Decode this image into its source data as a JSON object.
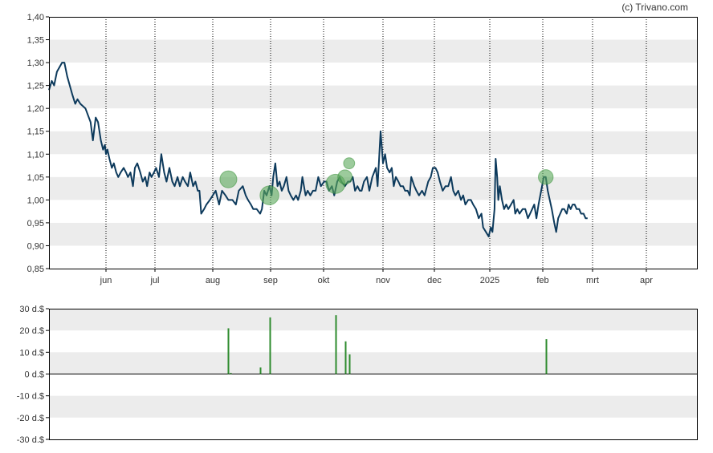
{
  "watermark": "(c) Trivano.com",
  "colors": {
    "price_line": "#0d3a5c",
    "dividend": "#2e8b2e",
    "bubble": "#5aa85a",
    "band": "#ececec",
    "axis": "#000000"
  },
  "chart_data": [
    {
      "type": "line",
      "title": "",
      "xlabel": "",
      "ylabel": "",
      "ylim": [
        0.85,
        1.4
      ],
      "grid": true,
      "y_ticks": [
        "1,40",
        "1,35",
        "1,30",
        "1,25",
        "1,20",
        "1,15",
        "1,10",
        "1,05",
        "1,00",
        "0,95",
        "0,90",
        "0,85"
      ],
      "x_ticks": [
        {
          "label": "jun",
          "month": 1
        },
        {
          "label": "jul",
          "month": 2
        },
        {
          "label": "aug",
          "month": 3
        },
        {
          "label": "sep",
          "month": 4
        },
        {
          "label": "okt",
          "month": 5
        },
        {
          "label": "nov",
          "month": 6
        },
        {
          "label": "dec",
          "month": 7
        },
        {
          "label": "2025",
          "month": 8
        },
        {
          "label": "feb",
          "month": 9
        },
        {
          "label": "mrt",
          "month": 10
        },
        {
          "label": "apr",
          "month": 11
        }
      ],
      "series": [
        {
          "points": [
            [
              0.0,
              1.24
            ],
            [
              0.05,
              1.26
            ],
            [
              0.09,
              1.25
            ],
            [
              0.14,
              1.28
            ],
            [
              0.23,
              1.3
            ],
            [
              0.27,
              1.3
            ],
            [
              0.32,
              1.27
            ],
            [
              0.41,
              1.23
            ],
            [
              0.46,
              1.21
            ],
            [
              0.5,
              1.22
            ],
            [
              0.55,
              1.21
            ],
            [
              0.64,
              1.2
            ],
            [
              0.73,
              1.17
            ],
            [
              0.77,
              1.13
            ],
            [
              0.82,
              1.18
            ],
            [
              0.86,
              1.17
            ],
            [
              0.91,
              1.13
            ],
            [
              0.95,
              1.11
            ],
            [
              0.98,
              1.12
            ],
            [
              1.0,
              1.1
            ],
            [
              1.03,
              1.11
            ],
            [
              1.07,
              1.09
            ],
            [
              1.12,
              1.07
            ],
            [
              1.16,
              1.08
            ],
            [
              1.21,
              1.06
            ],
            [
              1.25,
              1.05
            ],
            [
              1.3,
              1.06
            ],
            [
              1.36,
              1.07
            ],
            [
              1.41,
              1.06
            ],
            [
              1.45,
              1.05
            ],
            [
              1.5,
              1.06
            ],
            [
              1.55,
              1.03
            ],
            [
              1.59,
              1.07
            ],
            [
              1.64,
              1.08
            ],
            [
              1.7,
              1.06
            ],
            [
              1.75,
              1.04
            ],
            [
              1.8,
              1.05
            ],
            [
              1.84,
              1.03
            ],
            [
              1.89,
              1.06
            ],
            [
              1.93,
              1.05
            ],
            [
              1.98,
              1.06
            ],
            [
              2.02,
              1.07
            ],
            [
              2.07,
              1.05
            ],
            [
              2.11,
              1.1
            ],
            [
              2.16,
              1.06
            ],
            [
              2.2,
              1.04
            ],
            [
              2.25,
              1.07
            ],
            [
              2.3,
              1.04
            ],
            [
              2.34,
              1.03
            ],
            [
              2.39,
              1.05
            ],
            [
              2.43,
              1.03
            ],
            [
              2.48,
              1.05
            ],
            [
              2.52,
              1.04
            ],
            [
              2.57,
              1.03
            ],
            [
              2.61,
              1.06
            ],
            [
              2.66,
              1.03
            ],
            [
              2.7,
              1.04
            ],
            [
              2.74,
              1.02
            ],
            [
              2.77,
              1.02
            ],
            [
              2.8,
              0.97
            ],
            [
              2.85,
              0.98
            ],
            [
              2.89,
              0.99
            ],
            [
              2.95,
              1.0
            ],
            [
              3.0,
              1.01
            ],
            [
              3.05,
              1.02
            ],
            [
              3.11,
              0.99
            ],
            [
              3.16,
              1.02
            ],
            [
              3.22,
              1.01
            ],
            [
              3.27,
              1.0
            ],
            [
              3.34,
              1.0
            ],
            [
              3.4,
              0.99
            ],
            [
              3.45,
              1.02
            ],
            [
              3.52,
              1.03
            ],
            [
              3.57,
              1.01
            ],
            [
              3.61,
              1.0
            ],
            [
              3.66,
              0.99
            ],
            [
              3.7,
              0.98
            ],
            [
              3.76,
              0.98
            ],
            [
              3.82,
              0.97
            ],
            [
              3.85,
              0.98
            ],
            [
              3.89,
              1.02
            ],
            [
              3.93,
              1.01
            ],
            [
              3.98,
              1.03
            ],
            [
              4.02,
              1.01
            ],
            [
              4.05,
              1.05
            ],
            [
              4.09,
              1.08
            ],
            [
              4.13,
              1.03
            ],
            [
              4.17,
              1.04
            ],
            [
              4.21,
              1.02
            ],
            [
              4.25,
              1.03
            ],
            [
              4.3,
              1.05
            ],
            [
              4.34,
              1.02
            ],
            [
              4.38,
              1.01
            ],
            [
              4.43,
              1.0
            ],
            [
              4.48,
              1.01
            ],
            [
              4.52,
              1.0
            ],
            [
              4.57,
              1.02
            ],
            [
              4.6,
              1.05
            ],
            [
              4.66,
              1.01
            ],
            [
              4.7,
              1.02
            ],
            [
              4.75,
              1.01
            ],
            [
              4.8,
              1.02
            ],
            [
              4.85,
              1.02
            ],
            [
              4.9,
              1.05
            ],
            [
              4.95,
              1.03
            ],
            [
              5.01,
              1.04
            ],
            [
              5.05,
              1.04
            ],
            [
              5.09,
              1.02
            ],
            [
              5.14,
              1.03
            ],
            [
              5.18,
              1.01
            ],
            [
              5.23,
              1.04
            ],
            [
              5.27,
              1.05
            ],
            [
              5.3,
              1.04
            ],
            [
              5.36,
              1.03
            ],
            [
              5.41,
              1.04
            ],
            [
              5.45,
              1.04
            ],
            [
              5.49,
              1.05
            ],
            [
              5.53,
              1.02
            ],
            [
              5.57,
              1.03
            ],
            [
              5.61,
              1.02
            ],
            [
              5.64,
              1.02
            ],
            [
              5.68,
              1.04
            ],
            [
              5.73,
              1.05
            ],
            [
              5.77,
              1.02
            ],
            [
              5.82,
              1.05
            ],
            [
              5.85,
              1.06
            ],
            [
              5.88,
              1.07
            ],
            [
              5.91,
              1.03
            ],
            [
              5.96,
              1.15
            ],
            [
              6.0,
              1.08
            ],
            [
              6.04,
              1.1
            ],
            [
              6.08,
              1.07
            ],
            [
              6.13,
              1.06
            ],
            [
              6.17,
              1.07
            ],
            [
              6.21,
              1.03
            ],
            [
              6.25,
              1.05
            ],
            [
              6.3,
              1.04
            ],
            [
              6.34,
              1.03
            ],
            [
              6.39,
              1.03
            ],
            [
              6.43,
              1.02
            ],
            [
              6.48,
              1.02
            ],
            [
              6.52,
              1.01
            ],
            [
              6.55,
              1.05
            ],
            [
              6.61,
              1.03
            ],
            [
              6.65,
              1.02
            ],
            [
              6.7,
              1.01
            ],
            [
              6.76,
              1.02
            ],
            [
              6.81,
              1.01
            ],
            [
              6.88,
              1.04
            ],
            [
              6.93,
              1.05
            ],
            [
              6.97,
              1.07
            ],
            [
              7.02,
              1.07
            ],
            [
              7.06,
              1.06
            ],
            [
              7.1,
              1.04
            ],
            [
              7.15,
              1.02
            ],
            [
              7.2,
              1.03
            ],
            [
              7.25,
              1.03
            ],
            [
              7.3,
              1.05
            ],
            [
              7.34,
              1.02
            ],
            [
              7.38,
              1.01
            ],
            [
              7.43,
              1.02
            ],
            [
              7.48,
              1.0
            ],
            [
              7.52,
              1.01
            ],
            [
              7.56,
              0.99
            ],
            [
              7.61,
              1.0
            ],
            [
              7.66,
              1.0
            ],
            [
              7.7,
              0.99
            ],
            [
              7.75,
              0.98
            ],
            [
              7.8,
              0.96
            ],
            [
              7.85,
              0.97
            ],
            [
              7.88,
              0.94
            ],
            [
              7.93,
              0.93
            ],
            [
              7.98,
              0.92
            ],
            [
              8.02,
              0.94
            ],
            [
              8.05,
              0.93
            ],
            [
              8.09,
              0.98
            ],
            [
              8.11,
              1.09
            ],
            [
              8.14,
              1.05
            ],
            [
              8.16,
              1.0
            ],
            [
              8.19,
              1.03
            ],
            [
              8.23,
              1.0
            ],
            [
              8.27,
              0.98
            ],
            [
              8.31,
              0.99
            ],
            [
              8.35,
              0.98
            ],
            [
              8.4,
              0.99
            ],
            [
              8.45,
              1.0
            ],
            [
              8.48,
              0.97
            ],
            [
              8.52,
              0.98
            ],
            [
              8.56,
              0.97
            ],
            [
              8.62,
              0.98
            ],
            [
              8.67,
              0.98
            ],
            [
              8.72,
              0.96
            ],
            [
              8.76,
              0.97
            ],
            [
              8.8,
              0.98
            ],
            [
              8.84,
              0.99
            ],
            [
              8.88,
              0.96
            ],
            [
              8.92,
              0.99
            ],
            [
              8.97,
              1.02
            ],
            [
              9.02,
              1.05
            ],
            [
              9.06,
              1.05
            ],
            [
              9.1,
              1.02
            ],
            [
              9.14,
              1.0
            ],
            [
              9.18,
              0.98
            ],
            [
              9.23,
              0.95
            ],
            [
              9.27,
              0.93
            ],
            [
              9.31,
              0.96
            ],
            [
              9.35,
              0.97
            ],
            [
              9.39,
              0.98
            ],
            [
              9.43,
              0.98
            ],
            [
              9.48,
              0.97
            ],
            [
              9.52,
              0.99
            ],
            [
              9.56,
              0.98
            ],
            [
              9.6,
              0.99
            ],
            [
              9.64,
              0.99
            ],
            [
              9.68,
              0.98
            ],
            [
              9.73,
              0.98
            ],
            [
              9.77,
              0.97
            ],
            [
              9.82,
              0.97
            ],
            [
              9.86,
              0.96
            ],
            [
              9.9,
              0.96
            ]
          ]
        }
      ],
      "dividend_markers": [
        {
          "month": 3.27,
          "value": 1.045,
          "amount": 21
        },
        {
          "month": 3.98,
          "value": 1.01,
          "amount": 26
        },
        {
          "month": 5.2,
          "value": 1.035,
          "amount": 27
        },
        {
          "month": 5.36,
          "value": 1.05,
          "amount": 15
        },
        {
          "month": 5.43,
          "value": 1.08,
          "amount": 9
        },
        {
          "month": 9.06,
          "value": 1.05,
          "amount": 16
        }
      ]
    },
    {
      "type": "bar",
      "title": "",
      "xlabel": "",
      "ylabel": "",
      "ylim": [
        -30,
        30
      ],
      "y_ticks": [
        "30 d.$",
        "20 d.$",
        "10 d.$",
        "0 d.$",
        "-10 d.$",
        "-20 d.$",
        "-30 d.$"
      ],
      "bars": [
        {
          "month": 3.27,
          "value": 21
        },
        {
          "month": 3.3,
          "value": 0.5
        },
        {
          "month": 3.82,
          "value": 3
        },
        {
          "month": 3.98,
          "value": 26
        },
        {
          "month": 5.2,
          "value": 27
        },
        {
          "month": 5.36,
          "value": 15
        },
        {
          "month": 5.43,
          "value": 9
        },
        {
          "month": 9.06,
          "value": 16
        }
      ]
    }
  ]
}
